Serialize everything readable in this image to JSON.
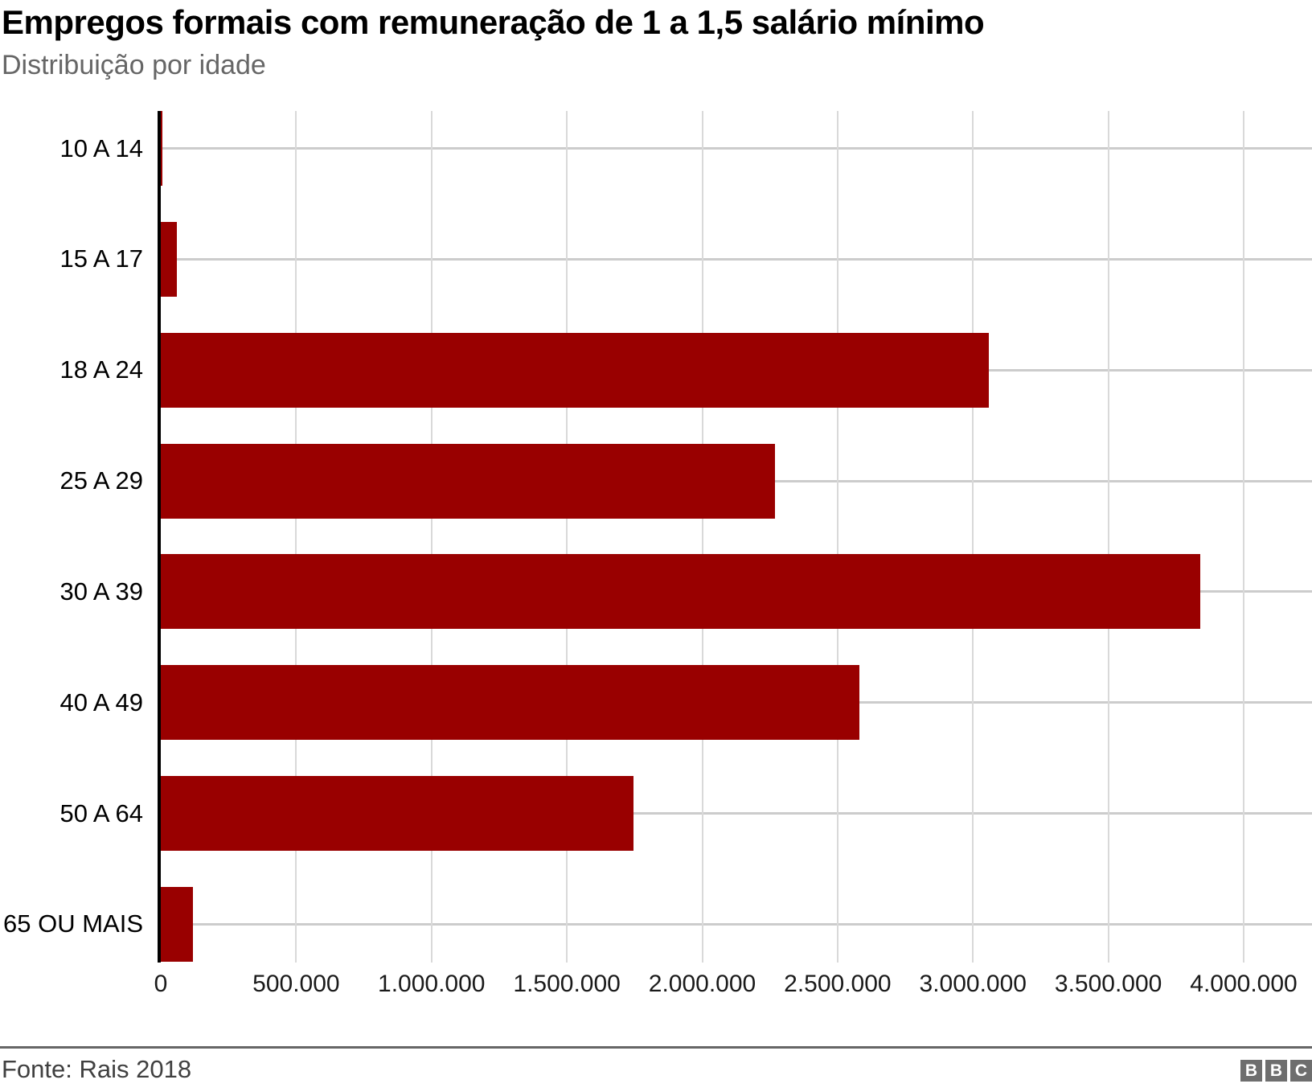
{
  "header": {
    "title": "Empregos formais com remuneração de 1 a 1,5 salário mínimo",
    "subtitle": "Distribuição por idade"
  },
  "chart_data": {
    "type": "bar",
    "orientation": "horizontal",
    "title": "Empregos formais com remuneração de 1 a 1,5 salário mínimo",
    "subtitle": "Distribuição por idade",
    "categories": [
      "10 A 14",
      "15 A 17",
      "18 A 24",
      "25 A 29",
      "30 A 39",
      "40 A 49",
      "50 A 64",
      "65 OU MAIS"
    ],
    "values": [
      5000,
      60000,
      3060000,
      2270000,
      3840000,
      2580000,
      1745000,
      120000
    ],
    "xlabel": "",
    "ylabel": "",
    "xlim": [
      0,
      4000000
    ],
    "x_ticks": [
      0,
      500000,
      1000000,
      1500000,
      2000000,
      2500000,
      3000000,
      3500000,
      4000000
    ],
    "x_tick_labels": [
      "0",
      "500.000",
      "1.000.000",
      "1.500.000",
      "2.000.000",
      "2.500.000",
      "3.000.000",
      "3.500.000",
      "4.000.000"
    ],
    "grid": true,
    "legend": "none",
    "bar_color": "#990000"
  },
  "footer": {
    "source": "Fonte: Rais 2018",
    "logo_letters": [
      "B",
      "B",
      "C"
    ]
  },
  "colors": {
    "bar": "#990000",
    "grid_vertical": "#d9d9d9",
    "grid_horizontal": "#cccccc",
    "axis": "#000000",
    "title_text": "#000000",
    "subtitle_text": "#666666",
    "source_text": "#404040",
    "divider": "#666666",
    "logo_background": "#6e6e6e"
  }
}
